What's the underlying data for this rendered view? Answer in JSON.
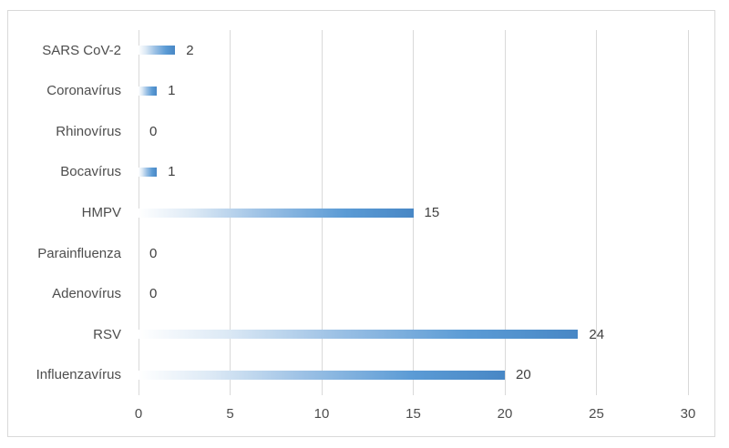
{
  "chart_data": {
    "type": "bar",
    "orientation": "horizontal",
    "title": "",
    "xlabel": "",
    "ylabel": "",
    "categories": [
      "SARS CoV-2",
      "Coronavírus",
      "Rhinovírus",
      "Bocavírus",
      "HMPV",
      "Parainfluenza",
      "Adenovírus",
      "RSV",
      "Influenzavírus"
    ],
    "values": [
      2,
      1,
      0,
      1,
      15,
      0,
      0,
      24,
      20
    ],
    "data_labels": [
      "2",
      "1",
      "0",
      "1",
      "15",
      "0",
      "0",
      "24",
      "20"
    ],
    "xlim": [
      0,
      30
    ],
    "x_ticks": [
      "0",
      "5",
      "10",
      "15",
      "20",
      "25",
      "30"
    ],
    "x_tick_values": [
      0,
      5,
      10,
      15,
      20,
      25,
      30
    ],
    "grid": "vertical-major-only",
    "legend": "none",
    "colors": {
      "bar_gradient_stops": [
        "#ffffff",
        "#dce9f5",
        "#9cc1e5",
        "#5b9bd5",
        "#4887c5"
      ],
      "bar_gradient_positions": [
        0,
        20,
        45,
        75,
        100
      ],
      "gridline": "#d9d9d9",
      "axis_text": "#4d4d4d",
      "data_label_text": "#404040",
      "chart_border": "#d9d9d9",
      "background": "#ffffff"
    }
  }
}
